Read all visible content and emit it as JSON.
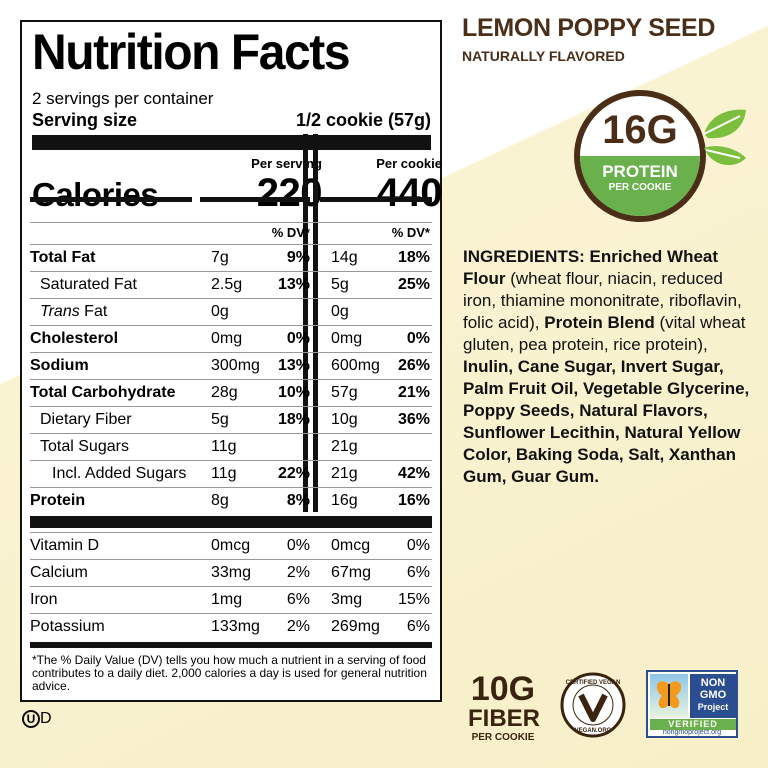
{
  "label": {
    "title": "Nutrition Facts",
    "servings": "2 servings per container",
    "serving_size_label": "Serving size",
    "serving_size_value": "1/2 cookie (57g)",
    "calories_label": "Calories",
    "per_serving_header": "Per serving",
    "per_cookie_header": "Per cookie",
    "calories_serving": "220",
    "calories_cookie": "440",
    "dv_header": "% DV*",
    "nutrients": [
      {
        "name": "Total Fat",
        "v1": "7g",
        "p1": "9%",
        "v2": "14g",
        "p2": "18%"
      },
      {
        "name": "Saturated Fat",
        "v1": "2.5g",
        "p1": "13%",
        "v2": "5g",
        "p2": "25%"
      },
      {
        "name": "Trans Fat",
        "v1": "0g",
        "p1": "",
        "v2": "0g",
        "p2": ""
      },
      {
        "name": "Cholesterol",
        "v1": "0mg",
        "p1": "0%",
        "v2": "0mg",
        "p2": "0%"
      },
      {
        "name": "Sodium",
        "v1": "300mg",
        "p1": "13%",
        "v2": "600mg",
        "p2": "26%"
      },
      {
        "name": "Total Carbohydrate",
        "v1": "28g",
        "p1": "10%",
        "v2": "57g",
        "p2": "21%"
      },
      {
        "name": "Dietary Fiber",
        "v1": "5g",
        "p1": "18%",
        "v2": "10g",
        "p2": "36%"
      },
      {
        "name": "Total Sugars",
        "v1": "11g",
        "p1": "",
        "v2": "21g",
        "p2": ""
      },
      {
        "name": "Incl. Added Sugars",
        "v1": "11g",
        "p1": "22%",
        "v2": "21g",
        "p2": "42%"
      },
      {
        "name": "Protein",
        "v1": "8g",
        "p1": "8%",
        "v2": "16g",
        "p2": "16%"
      }
    ],
    "vitamins": [
      {
        "name": "Vitamin D",
        "v1": "0mcg",
        "p1": "0%",
        "v2": "0mcg",
        "p2": "0%"
      },
      {
        "name": "Calcium",
        "v1": "33mg",
        "p1": "2%",
        "v2": "67mg",
        "p2": "6%"
      },
      {
        "name": "Iron",
        "v1": "1mg",
        "p1": "6%",
        "v2": "3mg",
        "p2": "15%"
      },
      {
        "name": "Potassium",
        "v1": "133mg",
        "p1": "2%",
        "v2": "269mg",
        "p2": "6%"
      }
    ],
    "footnote": "*The % Daily Value (DV) tells you how much a nutrient in a serving of food contributes to a daily diet. 2,000 calories a day is used for general nutrition advice."
  },
  "product": {
    "flavor": "LEMON POPPY SEED",
    "subtitle": "NATURALLY FLAVORED",
    "badge_value": "16G",
    "badge_word": "PROTEIN",
    "badge_sub": "PER COOKIE"
  },
  "ingredients": [
    {
      "t": "INGREDIENTS: Enriched Wheat Flour",
      "b": true
    },
    {
      "t": " (wheat flour, niacin, reduced iron, thiamine mononitrate, riboflavin, folic acid), ",
      "b": false
    },
    {
      "t": "Protein Blend",
      "b": true
    },
    {
      "t": " (vital wheat gluten, pea protein, rice protein), ",
      "b": false
    },
    {
      "t": "Inulin, Cane Sugar, Invert Sugar, Palm Fruit Oil, Vegetable Glycerine, Poppy Seeds, Natural Flavors, Sunflower Lecithin, Natural Yellow Color, Baking Soda, Salt, Xanthan Gum, Guar Gum.",
      "b": true
    }
  ],
  "fiber": {
    "value": "10G",
    "word": "FIBER",
    "sub": "PER COOKIE"
  },
  "vegan": {
    "top": "CERTIFIED VEGAN",
    "bottom": "VEGAN.ORG"
  },
  "nongmo": {
    "l1": "NON",
    "l2": "GMO",
    "l3": "Project",
    "verified": "VERIFIED",
    "url": "nongmoproject.org"
  },
  "kosher": {
    "letter": "U",
    "suffix": "D"
  },
  "colors": {
    "brown": "#4a2e17",
    "green": "#6ab04c",
    "cream": "#f7efc8",
    "nongmo_blue": "#2a4e90"
  }
}
